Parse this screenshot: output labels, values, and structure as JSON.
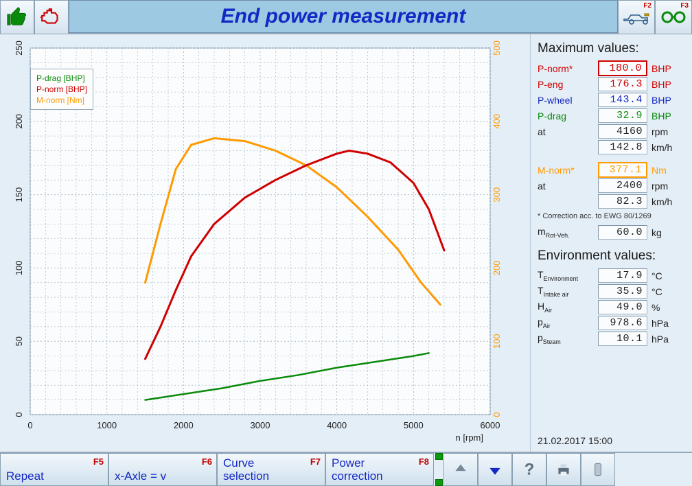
{
  "title": "End power measurement",
  "topbar": {
    "right_fkeys": [
      "F2",
      "F3"
    ]
  },
  "chart": {
    "type": "line",
    "background_color": "#fafcfd",
    "grid_color": "#a9bccb",
    "grid_dash": "2 3",
    "x": {
      "label": "n [rpm]",
      "min": 0,
      "max": 6000,
      "step": 1000
    },
    "y_left": {
      "min": 0,
      "max": 250,
      "step": 50
    },
    "y_right": {
      "min": 0,
      "max": 500,
      "step": 100
    },
    "axis_label_fontsize": 13,
    "tick_fontsize": 13,
    "legend": [
      {
        "label": "P-drag [BHP]",
        "color": "#0a8a0a"
      },
      {
        "label": "P-norm [BHP]",
        "color": "#d00000"
      },
      {
        "label": "M-norm [Nm]",
        "color": "#ff9a00"
      }
    ],
    "series": {
      "p_drag": {
        "color": "#0a8a0a",
        "width": 2.5,
        "axis": "left",
        "points": [
          [
            1500,
            10
          ],
          [
            2000,
            14
          ],
          [
            2500,
            18
          ],
          [
            3000,
            23
          ],
          [
            3500,
            27
          ],
          [
            4000,
            32
          ],
          [
            4500,
            36
          ],
          [
            5000,
            40
          ],
          [
            5200,
            42
          ]
        ]
      },
      "p_norm": {
        "color": "#d00000",
        "width": 3,
        "axis": "left",
        "points": [
          [
            1500,
            38
          ],
          [
            1700,
            60
          ],
          [
            1900,
            85
          ],
          [
            2100,
            108
          ],
          [
            2400,
            130
          ],
          [
            2800,
            148
          ],
          [
            3200,
            160
          ],
          [
            3600,
            170
          ],
          [
            4000,
            178
          ],
          [
            4160,
            180
          ],
          [
            4400,
            178
          ],
          [
            4700,
            172
          ],
          [
            5000,
            158
          ],
          [
            5200,
            140
          ],
          [
            5400,
            112
          ]
        ]
      },
      "m_norm": {
        "color": "#ff9a00",
        "width": 3,
        "axis": "right",
        "points": [
          [
            1500,
            180
          ],
          [
            1700,
            260
          ],
          [
            1900,
            335
          ],
          [
            2100,
            368
          ],
          [
            2400,
            377
          ],
          [
            2800,
            373
          ],
          [
            3200,
            360
          ],
          [
            3600,
            340
          ],
          [
            4000,
            310
          ],
          [
            4400,
            270
          ],
          [
            4800,
            225
          ],
          [
            5100,
            180
          ],
          [
            5350,
            150
          ]
        ]
      }
    }
  },
  "max_values": {
    "title": "Maximum values:",
    "rows": [
      {
        "label": "P-norm*",
        "value": "180.0",
        "unit": "BHP",
        "color": "#d00000",
        "box": "red"
      },
      {
        "label": "P-eng",
        "value": "176.3",
        "unit": "BHP",
        "color": "#d00000"
      },
      {
        "label": "P-wheel",
        "value": "143.4",
        "unit": "BHP",
        "color": "#1328c4"
      },
      {
        "label": "P-drag",
        "value": "32.9",
        "unit": "BHP",
        "color": "#0a8a0a"
      },
      {
        "label": "at",
        "value": "4160",
        "unit": "rpm",
        "color": "#222222"
      },
      {
        "label": "",
        "value": "142.8",
        "unit": "km/h",
        "color": "#222222"
      }
    ],
    "torque_rows": [
      {
        "label": "M-norm*",
        "value": "377.1",
        "unit": "Nm",
        "color": "#ff9a00",
        "box": "org"
      },
      {
        "label": "at",
        "value": "2400",
        "unit": "rpm",
        "color": "#222222"
      },
      {
        "label": "",
        "value": "82.3",
        "unit": "km/h",
        "color": "#222222"
      }
    ],
    "note": "* Correction acc. to EWG 80/1269",
    "mrot": {
      "label_html": "m<sub>Rot-Veh.</sub>",
      "value": "60.0",
      "unit": "kg"
    }
  },
  "env_values": {
    "title": "Environment values:",
    "rows": [
      {
        "label_html": "T<sub>Environment</sub>",
        "value": "17.9",
        "unit": "°C"
      },
      {
        "label_html": "T<sub>Intake air</sub>",
        "value": "35.9",
        "unit": "°C"
      },
      {
        "label_html": "H<sub>Air</sub>",
        "value": "49.0",
        "unit": "%"
      },
      {
        "label_html": "p<sub>Air</sub>",
        "value": "978.6",
        "unit": "hPa"
      },
      {
        "label_html": "p<sub>Steam</sub>",
        "value": "10.1",
        "unit": "hPa"
      }
    ]
  },
  "timestamp": "21.02.2017  15:00",
  "bottombar": {
    "buttons": [
      {
        "label": "Repeat",
        "fkey": "F5",
        "name": "repeat-button"
      },
      {
        "label": "x-Axle = v",
        "fkey": "F6",
        "name": "x-axis-toggle-button"
      },
      {
        "label": "Curve\nselection",
        "fkey": "F7",
        "name": "curve-selection-button"
      },
      {
        "label": "Power\ncorrection",
        "fkey": "F8",
        "name": "power-correction-button"
      }
    ]
  },
  "colors": {
    "accent_blue": "#1328c4",
    "panel_bg": "#e4eef6",
    "header_bg": "#9ec9e2"
  }
}
